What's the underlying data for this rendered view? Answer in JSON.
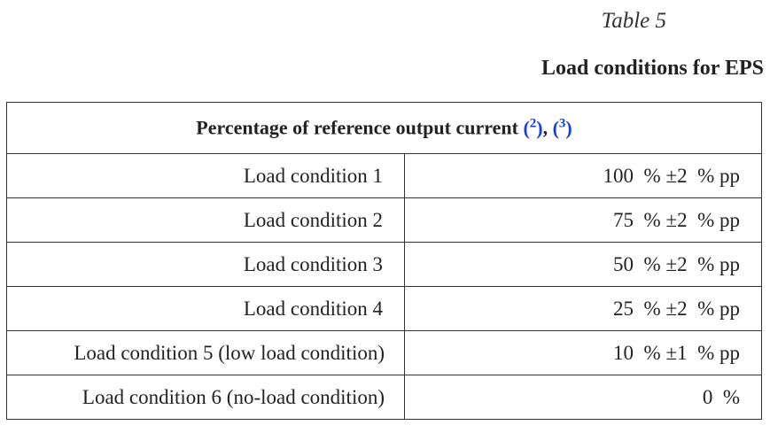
{
  "caption": "Table 5",
  "title": "Load conditions for EPS",
  "table": {
    "header": "Percentage of reference output current",
    "refs": [
      "2",
      "3"
    ],
    "rows": [
      {
        "label": "Load condition 1",
        "value": "100  % ±2  % pp"
      },
      {
        "label": "Load condition 2",
        "value": "75  % ±2  % pp"
      },
      {
        "label": "Load condition 3",
        "value": "50  % ±2  % pp"
      },
      {
        "label": "Load condition 4",
        "value": "25  % ±2  % pp"
      },
      {
        "label": "Load condition 5 (low load condition)",
        "value": "10  % ±1  % pp"
      },
      {
        "label": "Load condition 6 (no-load condition)",
        "value": "0  %"
      }
    ]
  },
  "colors": {
    "link": "#1a3fd6"
  }
}
